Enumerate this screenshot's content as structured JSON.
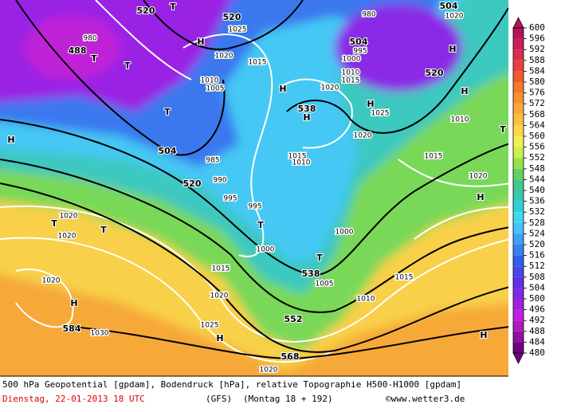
{
  "map": {
    "labels": [
      "520",
      "T",
      "520",
      "H",
      "1025",
      "488",
      "T",
      "T",
      "980",
      "1020",
      "1015",
      "1010",
      "1005",
      "H",
      "538",
      "H",
      "504",
      "995",
      "1000",
      "1010",
      "1015",
      "1020",
      "H",
      "1025",
      "504",
      "1020",
      "H",
      "520",
      "H",
      "1010",
      "T",
      "1020",
      "T",
      "H",
      "504",
      "985",
      "1015",
      "1010",
      "520",
      "990",
      "995",
      "995",
      "T",
      "1015",
      "1020",
      "H",
      "T",
      "1020",
      "T",
      "1020",
      "1000",
      "1000",
      "T",
      "538",
      "1005",
      "1015",
      "1015",
      "1020",
      "H",
      "1020",
      "1010",
      "552",
      "584",
      "1030",
      "1025",
      "H",
      "H",
      "568",
      "1020",
      "980"
    ]
  },
  "legend": {
    "levels": [
      600,
      596,
      592,
      588,
      584,
      580,
      576,
      572,
      568,
      564,
      560,
      556,
      552,
      548,
      544,
      540,
      536,
      532,
      528,
      524,
      520,
      516,
      512,
      508,
      504,
      500,
      496,
      492,
      488,
      484,
      480
    ],
    "colors": [
      "#b4145c",
      "#c8205a",
      "#dc2c50",
      "#e84040",
      "#f05a30",
      "#f47828",
      "#f89030",
      "#fca838",
      "#fcc040",
      "#fcd848",
      "#f0f050",
      "#c8f050",
      "#98e048",
      "#60d060",
      "#40c890",
      "#38c8b0",
      "#30d0d8",
      "#40d8f0",
      "#48c0f8",
      "#40a0f8",
      "#3880f0",
      "#3060e8",
      "#4848e8",
      "#6030e8",
      "#8028e8",
      "#a020e0",
      "#c020e0",
      "#b018c0",
      "#9010a0",
      "#700080"
    ]
  },
  "footer": {
    "line1": "500 hPa Geopotential [gpdam], Bodendruck [hPa], relative Topographie H500-H1000 [gpdam]",
    "date": "Dienstag, 22-01-2013  18 UTC",
    "model": "(GFS)",
    "run": "(Montag 18 + 192)",
    "source": "©www.wetter3.de"
  }
}
